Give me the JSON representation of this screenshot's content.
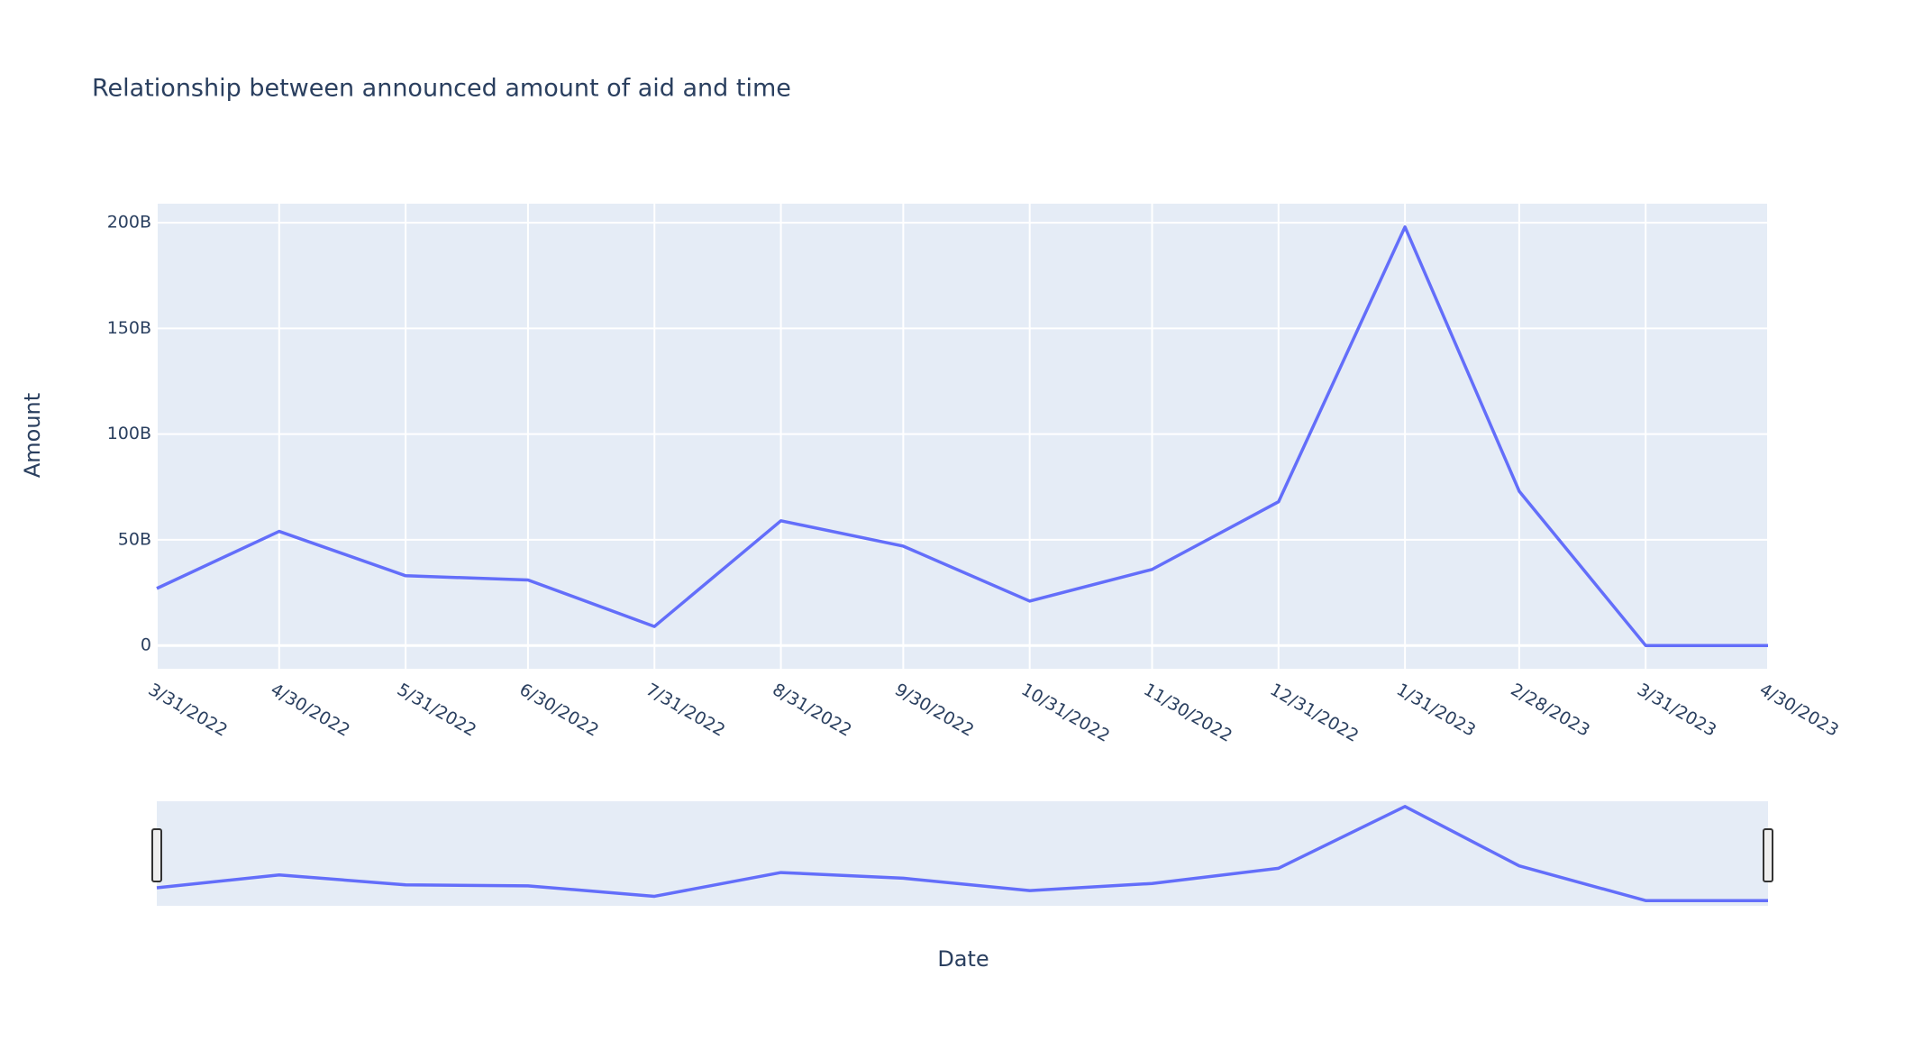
{
  "chart_data": {
    "type": "line",
    "title": "Relationship between announced amount of aid and time",
    "x_label": "Date",
    "y_label": "Amount",
    "x": [
      "3/31/2022",
      "4/30/2022",
      "5/31/2022",
      "6/30/2022",
      "7/31/2022",
      "8/31/2022",
      "9/30/2022",
      "10/31/2022",
      "11/30/2022",
      "12/31/2022",
      "1/31/2023",
      "2/28/2023",
      "3/31/2023",
      "4/30/2023"
    ],
    "series": [
      {
        "name": "Amount",
        "color": "#636efa",
        "values": [
          27000000000,
          54000000000,
          33000000000,
          31000000000,
          9000000000,
          59000000000,
          47000000000,
          21000000000,
          36000000000,
          68000000000,
          198000000000,
          73000000000,
          0,
          0
        ]
      }
    ],
    "ylim": [
      -11000000000,
      209000000000
    ],
    "yticks": [
      0,
      {
        "value": 50000000000,
        "label": "50B"
      },
      {
        "value": 100000000000,
        "label": "100B"
      },
      {
        "value": 150000000000,
        "label": "150B"
      },
      {
        "value": 200000000000,
        "label": "200B"
      }
    ],
    "grid": true,
    "rangeslider": true
  }
}
